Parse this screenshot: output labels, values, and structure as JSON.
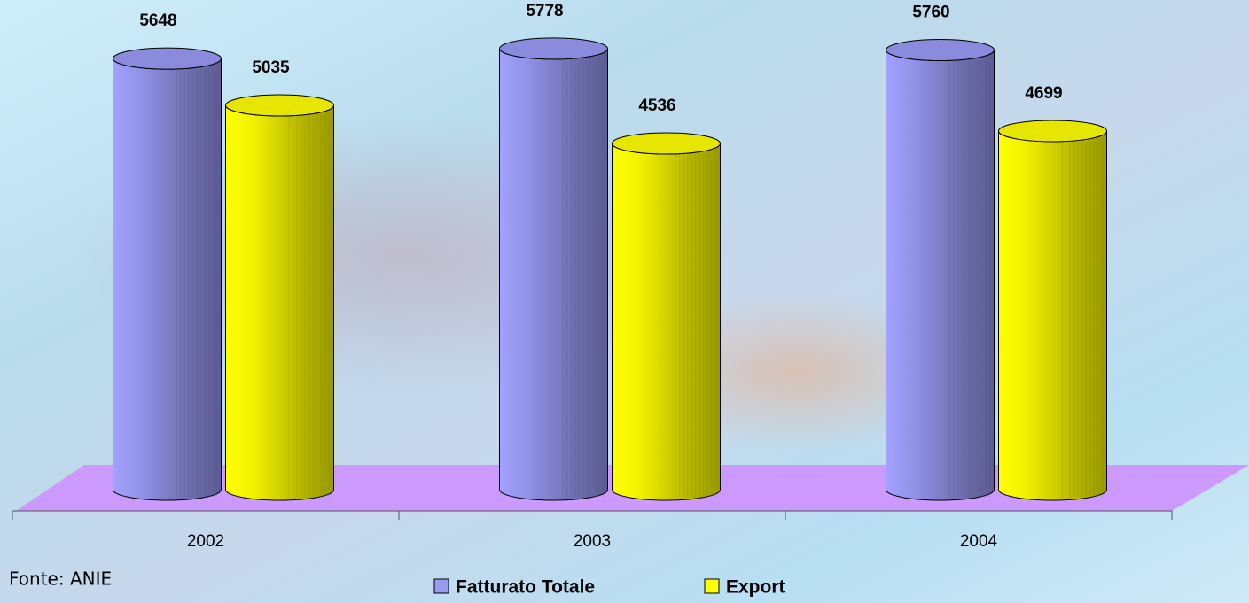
{
  "chart_data": {
    "type": "cylinder-bar",
    "categories": [
      "2002",
      "2003",
      "2004"
    ],
    "series": [
      {
        "name": "Fatturato Totale",
        "color": "#9a9af5",
        "values": [
          5648,
          5778,
          5760
        ]
      },
      {
        "name": "Export",
        "color": "#ffff00",
        "values": [
          5035,
          4536,
          4699
        ]
      }
    ],
    "source": "Fonte: ANIE"
  }
}
